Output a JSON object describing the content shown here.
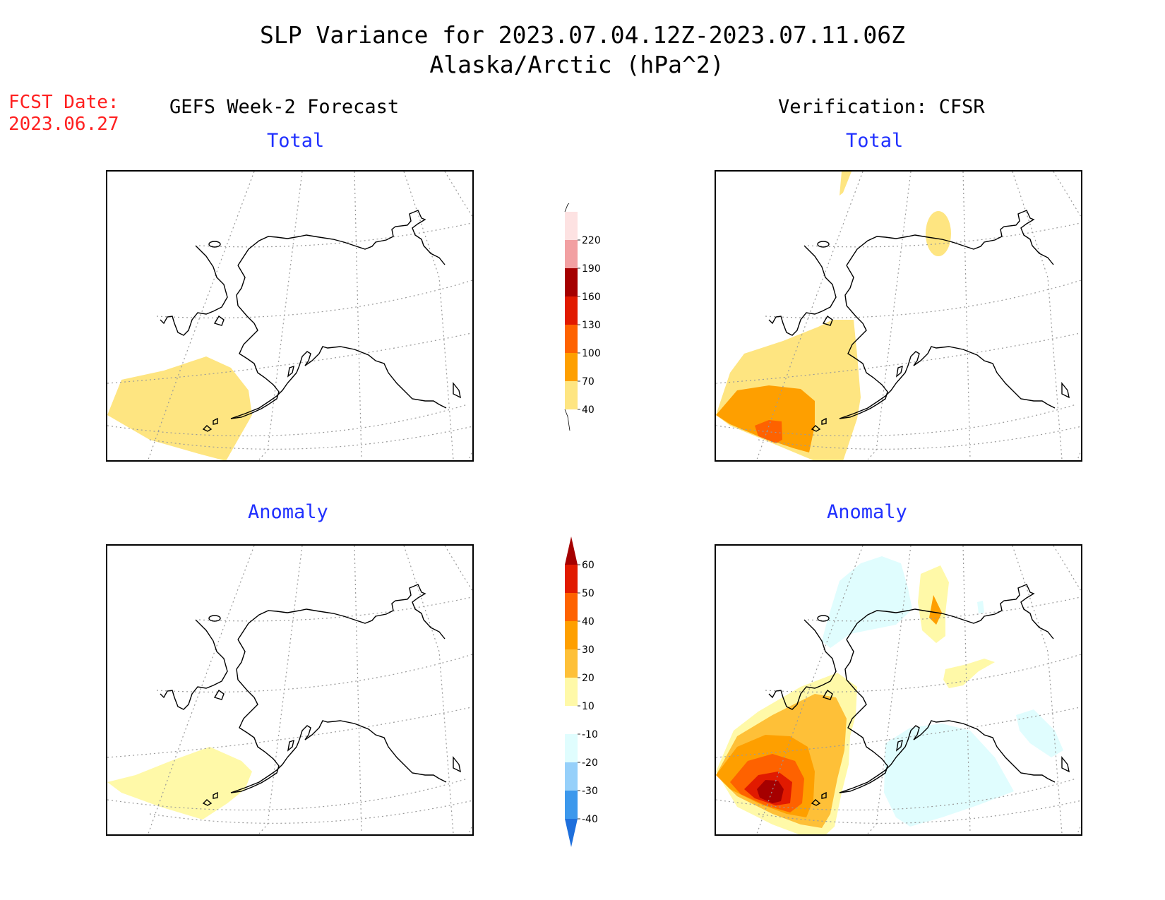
{
  "title": {
    "line1": "SLP Variance for 2023.07.04.12Z-2023.07.11.06Z",
    "line2": "Alaska/Arctic (hPa^2)"
  },
  "forecast_date": {
    "label": "FCST Date:",
    "value": "2023.06.27"
  },
  "columns": {
    "left": "GEFS Week-2 Forecast",
    "right": "Verification: CFSR"
  },
  "panels": {
    "top_left": "Total",
    "top_right": "Total",
    "bottom_left": "Anomaly",
    "bottom_right": "Anomaly"
  },
  "colorbars": {
    "total": {
      "labels": [
        "40",
        "70",
        "100",
        "130",
        "160",
        "190",
        "220"
      ],
      "colors": [
        "#fee581",
        "#fe9f00",
        "#fe6200",
        "#e11a00",
        "#a50000",
        "#f2a0a2",
        "#fde2e2"
      ]
    },
    "anomaly": {
      "labels": [
        "-40",
        "-30",
        "-20",
        "-10",
        "10",
        "20",
        "30",
        "40",
        "50",
        "60"
      ],
      "colors": [
        "#1e6fdc",
        "#3c98ec",
        "#96d0fa",
        "#e0fdfe",
        "#ffffff",
        "#fff9a8",
        "#fec038",
        "#fe9f00",
        "#fe6200",
        "#e11a00",
        "#a50000"
      ]
    }
  },
  "colors": {
    "fcst_date": "#ff2020",
    "subtitle": "#2030ff"
  }
}
